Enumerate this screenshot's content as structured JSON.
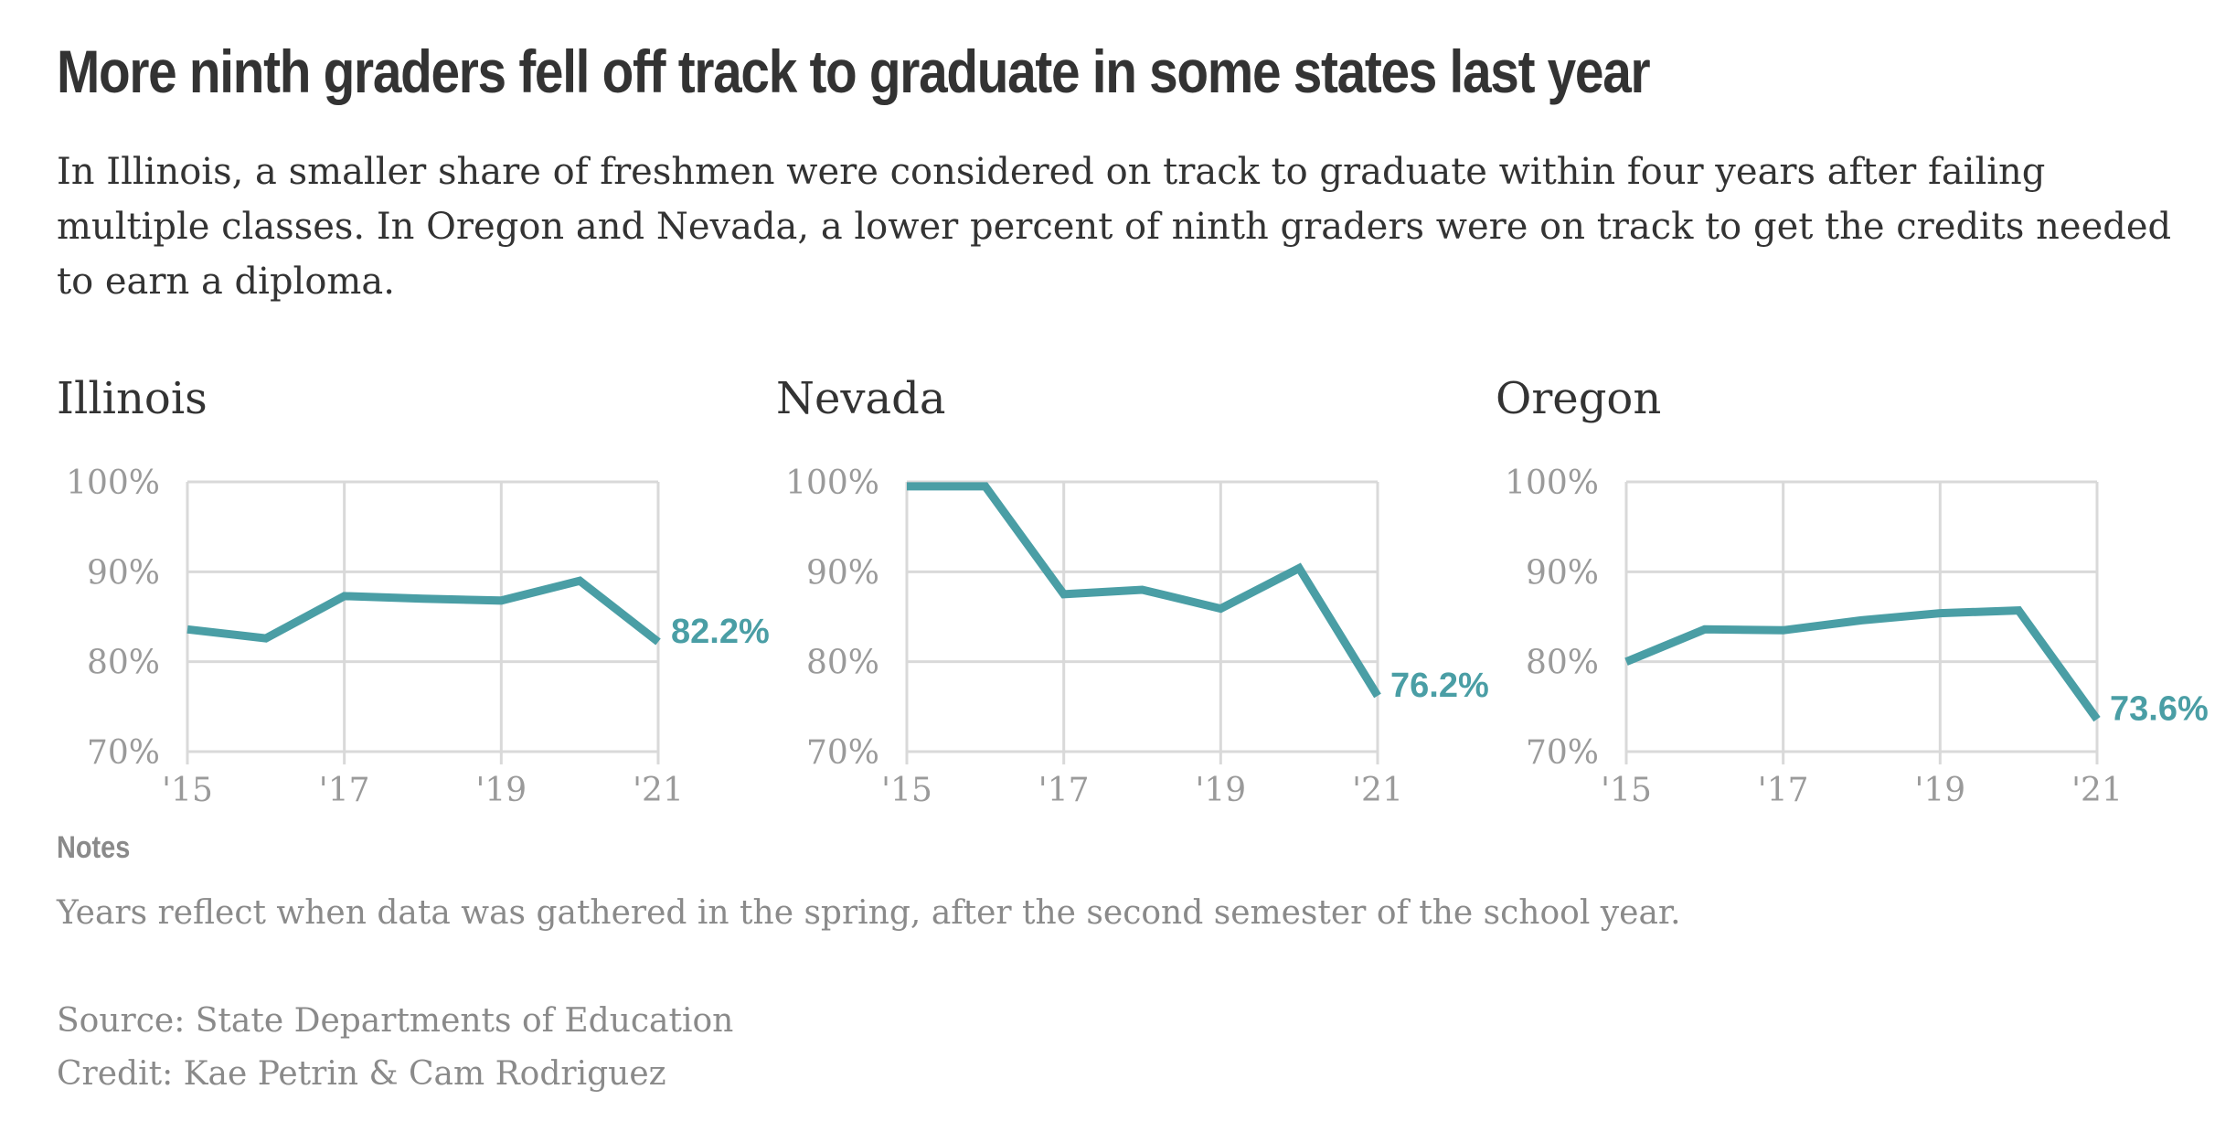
{
  "title": "More ninth graders fell off track to graduate in some states last year",
  "subtitle": "In Illinois, a smaller share of freshmen were considered on track to graduate within four years after failing multiple classes. In Oregon and Nevada, a lower percent of ninth graders were on track to get the credits needed to earn a diploma.",
  "colors": {
    "series": "#4a9ea5",
    "grid": "#d9d9d9",
    "text": "#333333",
    "muted": "#8a8a8a"
  },
  "chart_data": [
    {
      "type": "line",
      "title": "Illinois",
      "x": [
        2015,
        2016,
        2017,
        2018,
        2019,
        2020,
        2021
      ],
      "y": [
        83.6,
        82.6,
        87.3,
        87.0,
        86.8,
        89.0,
        82.2
      ],
      "end_label": "82.2%",
      "ylim": [
        70,
        100
      ],
      "y_ticks": [
        100,
        90,
        80,
        70
      ],
      "y_tick_labels": [
        "100%",
        "90%",
        "80%",
        "70%"
      ],
      "x_ticks": [
        2015,
        2017,
        2019,
        2021
      ],
      "x_tick_labels": [
        "'15",
        "'17",
        "'19",
        "'21"
      ],
      "grid": true
    },
    {
      "type": "line",
      "title": "Nevada",
      "x": [
        2015,
        2016,
        2017,
        2018,
        2019,
        2020,
        2021
      ],
      "y": [
        99.5,
        99.5,
        87.5,
        88.0,
        85.9,
        90.4,
        76.2
      ],
      "end_label": "76.2%",
      "ylim": [
        70,
        100
      ],
      "y_ticks": [
        100,
        90,
        80,
        70
      ],
      "y_tick_labels": [
        "100%",
        "90%",
        "80%",
        "70%"
      ],
      "x_ticks": [
        2015,
        2017,
        2019,
        2021
      ],
      "x_tick_labels": [
        "'15",
        "'17",
        "'19",
        "'21"
      ],
      "grid": true
    },
    {
      "type": "line",
      "title": "Oregon",
      "x": [
        2015,
        2016,
        2017,
        2018,
        2019,
        2020,
        2021
      ],
      "y": [
        80.0,
        83.6,
        83.5,
        84.6,
        85.4,
        85.7,
        73.6
      ],
      "end_label": "73.6%",
      "ylim": [
        70,
        100
      ],
      "y_ticks": [
        100,
        90,
        80,
        70
      ],
      "y_tick_labels": [
        "100%",
        "90%",
        "80%",
        "70%"
      ],
      "x_ticks": [
        2015,
        2017,
        2019,
        2021
      ],
      "x_tick_labels": [
        "'15",
        "'17",
        "'19",
        "'21"
      ],
      "grid": true
    }
  ],
  "notes": {
    "heading": "Notes",
    "body": "Years reflect when data was gathered in the spring, after the second semester of the school year."
  },
  "source": "Source: State Departments of Education",
  "credit": "Credit: Kae Petrin & Cam Rodriguez"
}
